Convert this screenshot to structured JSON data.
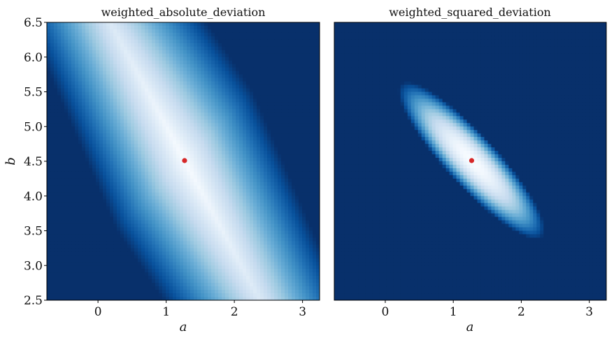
{
  "chart_data": [
    {
      "type": "heatmap",
      "title": "weighted_absolute_deviation",
      "xlabel": "a",
      "ylabel": "b",
      "xlim": [
        -0.75,
        3.25
      ],
      "ylim": [
        2.5,
        6.5
      ],
      "xticks": [
        0,
        1,
        2,
        3
      ],
      "xtick_labels": [
        "0",
        "1",
        "2",
        "3"
      ],
      "yticks": [
        2.5,
        3.0,
        3.5,
        4.0,
        4.5,
        5.0,
        5.5,
        6.0,
        6.5
      ],
      "ytick_labels": [
        "2.5",
        "3.0",
        "3.5",
        "4.0",
        "4.5",
        "5.0",
        "5.5",
        "6.0",
        "6.5"
      ],
      "colormap": "Blues_r",
      "colors": {
        "low": "#f7fbff",
        "high": "#08306b"
      },
      "grid": false,
      "point": {
        "a": 1.27,
        "b": 4.51,
        "color": "#d62728"
      },
      "surface": "band along a + b diagonal, light (low) near the line through the point, dark farther away"
    },
    {
      "type": "heatmap",
      "title": "weighted_squared_deviation",
      "xlabel": "a",
      "ylabel": "",
      "xlim": [
        -0.75,
        3.25
      ],
      "ylim": [
        2.5,
        6.5
      ],
      "xticks": [
        0,
        1,
        2,
        3
      ],
      "xtick_labels": [
        "0",
        "1",
        "2",
        "3"
      ],
      "yticks": [],
      "ytick_labels": [],
      "colormap": "Blues_r",
      "colors": {
        "low": "#f7fbff",
        "high": "#08306b"
      },
      "grid": false,
      "point": {
        "a": 1.27,
        "b": 4.51,
        "color": "#d62728"
      },
      "surface": "tilted elliptical minimum around the point, saturating to darkest blue outside"
    }
  ]
}
